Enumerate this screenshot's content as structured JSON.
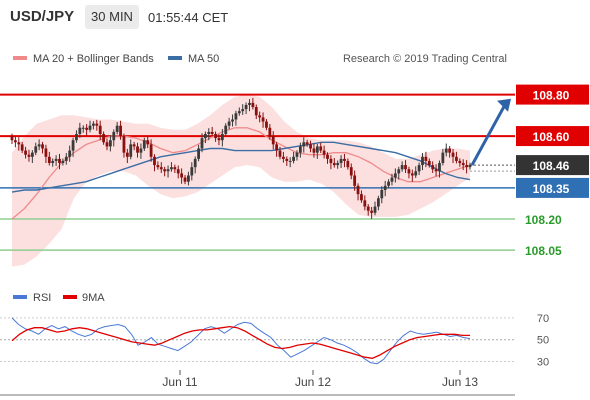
{
  "header": {
    "symbol": "USD/JPY",
    "timeframe": "30 MIN",
    "clock": "01:55:44 CET"
  },
  "copyright": "Research © 2019 Trading Central",
  "legend_main": [
    {
      "label": "MA 20 + Bollinger Bands",
      "color": "#f08a8a"
    },
    {
      "label": "MA 50",
      "color": "#3a6ea5"
    }
  ],
  "legend_rsi": [
    {
      "label": "RSI",
      "color": "#4a78d6"
    },
    {
      "label": "9MA",
      "color": "#e00000"
    }
  ],
  "chart_data": [
    {
      "type": "candlestick",
      "title": "USD/JPY 30 MIN",
      "ylim": [
        107.93,
        108.88
      ],
      "x_tick_labels": [
        "Jun 11",
        "Jun 12",
        "Jun 13"
      ],
      "y_tick_labels": [
        108.05,
        108.2,
        108.35,
        108.46,
        108.6,
        108.8
      ],
      "current_price": 108.46,
      "levels": [
        {
          "value": 108.8,
          "label": "108.80",
          "kind": "resistance",
          "color": "#e00000"
        },
        {
          "value": 108.6,
          "label": "108.60",
          "kind": "resistance",
          "color": "#e00000"
        },
        {
          "value": 108.46,
          "label": "108.46",
          "kind": "last",
          "color": "#333333"
        },
        {
          "value": 108.35,
          "label": "108.35",
          "kind": "pivot",
          "color": "#2f6fb3"
        },
        {
          "value": 108.2,
          "label": "108.20",
          "kind": "support",
          "color": "#2a9a2a"
        },
        {
          "value": 108.05,
          "label": "108.05",
          "kind": "support",
          "color": "#2a9a2a"
        }
      ],
      "forecast_target": 108.78,
      "series": [
        {
          "name": "Price",
          "values": [
            108.58,
            108.57,
            108.56,
            108.53,
            108.51,
            108.5,
            108.52,
            108.55,
            108.56,
            108.54,
            108.5,
            108.47,
            108.48,
            108.49,
            108.47,
            108.48,
            108.5,
            108.53,
            108.58,
            108.61,
            108.64,
            108.64,
            108.63,
            108.65,
            108.66,
            108.65,
            108.61,
            108.57,
            108.55,
            108.58,
            108.62,
            108.65,
            108.6,
            108.52,
            108.5,
            108.56,
            108.55,
            108.52,
            108.54,
            108.58,
            108.56,
            108.5,
            108.46,
            108.45,
            108.44,
            108.43,
            108.44,
            108.45,
            108.44,
            108.42,
            108.4,
            108.38,
            108.41,
            108.45,
            108.49,
            108.54,
            108.59,
            108.61,
            108.62,
            108.61,
            108.59,
            108.58,
            108.61,
            108.65,
            108.67,
            108.68,
            108.71,
            108.72,
            108.73,
            108.75,
            108.76,
            108.74,
            108.7,
            108.69,
            108.67,
            108.64,
            108.6,
            108.56,
            108.53,
            108.5,
            108.49,
            108.48,
            108.48,
            108.5,
            108.52,
            108.55,
            108.57,
            108.56,
            108.54,
            108.52,
            108.55,
            108.53,
            108.51,
            108.49,
            108.47,
            108.46,
            108.47,
            108.49,
            108.48,
            108.45,
            108.41,
            108.36,
            108.32,
            108.29,
            108.26,
            108.24,
            108.23,
            108.26,
            108.3,
            108.34,
            108.36,
            108.38,
            108.4,
            108.42,
            108.44,
            108.46,
            108.44,
            108.42,
            108.41,
            108.43,
            108.46,
            108.5,
            108.48,
            108.46,
            108.44,
            108.43,
            108.47,
            108.52,
            108.54,
            108.52,
            108.5,
            108.48,
            108.47,
            108.46,
            108.45,
            108.46
          ]
        },
        {
          "name": "MA 50",
          "values": [
            108.33,
            108.34,
            108.34,
            108.35,
            108.36,
            108.37,
            108.38,
            108.4,
            108.42,
            108.44,
            108.46,
            108.48,
            108.5,
            108.51,
            108.52,
            108.53,
            108.54,
            108.54,
            108.53,
            108.53,
            108.53,
            108.53,
            108.54,
            108.55,
            108.56,
            108.57,
            108.57,
            108.56,
            108.55,
            108.54,
            108.53,
            108.52,
            108.5,
            108.48,
            108.45,
            108.42,
            108.4,
            108.39
          ]
        },
        {
          "name": "MA 20",
          "values": [
            108.2,
            108.25,
            108.32,
            108.4,
            108.47,
            108.52,
            108.56,
            108.58,
            108.6,
            108.6,
            108.59,
            108.57,
            108.54,
            108.52,
            108.53,
            108.56,
            108.59,
            108.62,
            108.64,
            108.64,
            108.62,
            108.58,
            108.55,
            108.52,
            108.51,
            108.51,
            108.52,
            108.52,
            108.5,
            108.47,
            108.43,
            108.4,
            108.38,
            108.38,
            108.4,
            108.42,
            108.44,
            108.46
          ]
        },
        {
          "name": "Bollinger Upper",
          "values": [
            108.52,
            108.6,
            108.66,
            108.68,
            108.7,
            108.7,
            108.69,
            108.68,
            108.68,
            108.67,
            108.66,
            108.66,
            108.64,
            108.63,
            108.63,
            108.66,
            108.7,
            108.75,
            108.79,
            108.8,
            108.79,
            108.74,
            108.67,
            108.62,
            108.59,
            108.58,
            108.58,
            108.58,
            108.57,
            108.55,
            108.52,
            108.49,
            108.49,
            108.51,
            108.53,
            108.54,
            108.54,
            108.53
          ]
        },
        {
          "name": "Bollinger Lower",
          "values": [
            107.97,
            107.98,
            108.02,
            108.08,
            108.15,
            108.3,
            108.38,
            108.41,
            108.43,
            108.43,
            108.41,
            108.36,
            108.32,
            108.3,
            108.31,
            108.33,
            108.37,
            108.41,
            108.45,
            108.46,
            108.45,
            108.4,
            108.38,
            108.38,
            108.39,
            108.37,
            108.33,
            108.27,
            108.22,
            108.21,
            108.21,
            108.21,
            108.22,
            108.25,
            108.28,
            108.32,
            108.36,
            108.4
          ]
        }
      ]
    },
    {
      "type": "line",
      "title": "RSI",
      "ylim": [
        25,
        80
      ],
      "y_tick_labels": [
        30,
        50,
        70
      ],
      "reference_levels": [
        30,
        50,
        70
      ],
      "series": [
        {
          "name": "RSI",
          "values": [
            70,
            64,
            60,
            58,
            55,
            60,
            63,
            60,
            62,
            58,
            55,
            53,
            55,
            60,
            62,
            63,
            64,
            62,
            55,
            45,
            48,
            52,
            46,
            44,
            42,
            40,
            44,
            48,
            54,
            60,
            62,
            60,
            56,
            60,
            64,
            66,
            65,
            60,
            56,
            52,
            45,
            40,
            34,
            37,
            40,
            44,
            48,
            52,
            50,
            47,
            45,
            42,
            38,
            33,
            29,
            28,
            32,
            40,
            48,
            54,
            58,
            56,
            55,
            56,
            57,
            55,
            53,
            54,
            52,
            51
          ]
        },
        {
          "name": "9MA",
          "values": [
            49,
            55,
            59,
            61,
            61,
            59,
            57,
            58,
            60,
            61,
            60,
            58,
            56,
            54,
            52,
            50,
            48,
            47,
            46,
            45,
            47,
            50,
            53,
            56,
            58,
            59,
            59,
            60,
            61,
            62,
            61,
            58,
            54,
            50,
            46,
            43,
            42,
            43,
            45,
            46,
            47,
            46,
            44,
            42,
            40,
            38,
            36,
            34,
            33,
            36,
            40,
            44,
            47,
            50,
            52,
            53,
            54,
            55,
            55,
            55,
            54,
            54
          ]
        }
      ]
    }
  ]
}
